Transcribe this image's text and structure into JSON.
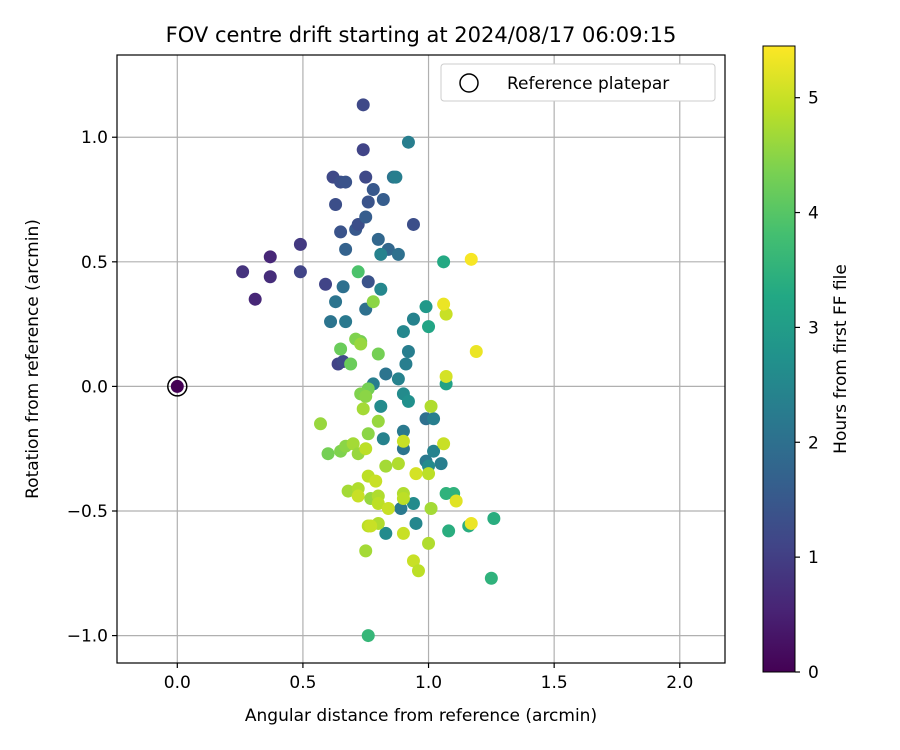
{
  "chart_data": {
    "type": "scatter",
    "title": "FOV centre drift starting at 2024/08/17 06:09:15",
    "xlabel": "Angular distance from reference (arcmin)",
    "ylabel": "Rotation from reference (arcmin)",
    "xlim": [
      -0.24,
      2.18
    ],
    "ylim": [
      -1.11,
      1.33
    ],
    "x_ticks": [
      0.0,
      0.5,
      1.0,
      1.5,
      2.0
    ],
    "x_tick_labels": [
      "0.0",
      "0.5",
      "1.0",
      "1.5",
      "2.0"
    ],
    "y_ticks": [
      -1.0,
      -0.5,
      0.0,
      0.5,
      1.0
    ],
    "y_tick_labels": [
      "−1.0",
      "−0.5",
      "0.0",
      "0.5",
      "1.0"
    ],
    "grid": true,
    "legend": {
      "placement": "top-right",
      "entries": [
        "Reference platepar"
      ]
    },
    "colorbar": {
      "label": "Hours from first FF file",
      "range": [
        0,
        5.45
      ],
      "ticks": [
        0,
        1,
        2,
        3,
        4,
        5
      ],
      "tick_labels": [
        "0",
        "1",
        "2",
        "3",
        "4",
        "5"
      ],
      "colormap": "viridis"
    },
    "reference_point": {
      "x": 0.0,
      "y": 0.0,
      "hours": 0.0
    },
    "series": [
      {
        "points": [
          [
            0.31,
            0.35,
            0.6
          ],
          [
            0.26,
            0.46,
            0.8
          ],
          [
            0.37,
            0.44,
            0.7
          ],
          [
            0.37,
            0.52,
            0.6
          ],
          [
            0.49,
            0.57,
            0.9
          ],
          [
            0.49,
            0.46,
            1.1
          ],
          [
            0.59,
            0.41,
            1.1
          ],
          [
            0.64,
            0.09,
            1.1
          ],
          [
            0.66,
            0.1,
            1.2
          ],
          [
            0.74,
            1.13,
            1.2
          ],
          [
            0.74,
            0.95,
            1.1
          ],
          [
            0.62,
            0.84,
            1.2
          ],
          [
            0.65,
            0.82,
            1.3
          ],
          [
            0.67,
            0.82,
            1.4
          ],
          [
            0.75,
            0.84,
            1.2
          ],
          [
            0.63,
            0.73,
            1.3
          ],
          [
            0.76,
            0.74,
            1.4
          ],
          [
            0.78,
            0.79,
            1.5
          ],
          [
            0.82,
            0.75,
            1.6
          ],
          [
            0.94,
            0.65,
            1.3
          ],
          [
            0.65,
            0.62,
            1.4
          ],
          [
            0.71,
            0.63,
            1.5
          ],
          [
            0.72,
            0.65,
            1.3
          ],
          [
            0.76,
            0.42,
            1.4
          ],
          [
            0.67,
            0.55,
            1.7
          ],
          [
            0.75,
            0.68,
            1.6
          ],
          [
            0.8,
            0.59,
            1.8
          ],
          [
            0.84,
            0.55,
            1.8
          ],
          [
            0.86,
            0.84,
            2.1
          ],
          [
            0.87,
            0.84,
            2.3
          ],
          [
            0.92,
            0.98,
            2.3
          ],
          [
            0.88,
            0.53,
            2.0
          ],
          [
            0.81,
            0.53,
            2.4
          ],
          [
            0.66,
            0.4,
            2.0
          ],
          [
            0.63,
            0.34,
            2.1
          ],
          [
            0.61,
            0.26,
            2.1
          ],
          [
            0.67,
            0.26,
            2.2
          ],
          [
            0.75,
            0.31,
            2.0
          ],
          [
            0.81,
            0.39,
            2.5
          ],
          [
            0.94,
            0.27,
            2.4
          ],
          [
            0.9,
            0.22,
            2.5
          ],
          [
            0.92,
            0.14,
            2.3
          ],
          [
            0.91,
            0.09,
            2.3
          ],
          [
            0.83,
            0.05,
            2.1
          ],
          [
            0.78,
            0.01,
            2.3
          ],
          [
            0.88,
            0.03,
            2.4
          ],
          [
            0.9,
            -0.03,
            2.6
          ],
          [
            0.92,
            -0.06,
            2.7
          ],
          [
            0.81,
            -0.08,
            2.6
          ],
          [
            0.99,
            -0.13,
            2.0
          ],
          [
            1.02,
            -0.13,
            2.3
          ],
          [
            0.82,
            -0.21,
            2.4
          ],
          [
            0.9,
            -0.18,
            2.2
          ],
          [
            0.9,
            -0.25,
            2.1
          ],
          [
            0.99,
            -0.3,
            2.2
          ],
          [
            1.02,
            -0.26,
            2.4
          ],
          [
            1.05,
            -0.31,
            2.3
          ],
          [
            1.0,
            -0.32,
            2.6
          ],
          [
            0.89,
            -0.49,
            2.2
          ],
          [
            0.94,
            -0.47,
            2.6
          ],
          [
            0.95,
            -0.55,
            2.5
          ],
          [
            0.83,
            -0.59,
            2.6
          ],
          [
            1.07,
            0.01,
            3.1
          ],
          [
            0.99,
            0.32,
            2.9
          ],
          [
            1.0,
            0.24,
            3.2
          ],
          [
            1.06,
            0.5,
            3.3
          ],
          [
            1.1,
            -0.43,
            3.5
          ],
          [
            1.07,
            -0.43,
            3.5
          ],
          [
            1.08,
            -0.58,
            3.4
          ],
          [
            1.16,
            -0.56,
            3.4
          ],
          [
            1.26,
            -0.53,
            3.4
          ],
          [
            1.25,
            -0.77,
            3.5
          ],
          [
            0.76,
            -1.0,
            3.6
          ],
          [
            0.72,
            0.46,
            3.9
          ],
          [
            0.65,
            0.15,
            4.2
          ],
          [
            0.69,
            0.09,
            4.2
          ],
          [
            0.73,
            0.18,
            4.3
          ],
          [
            0.71,
            0.19,
            4.4
          ],
          [
            0.73,
            0.17,
            4.6
          ],
          [
            0.8,
            0.13,
            4.3
          ],
          [
            0.78,
            0.34,
            4.5
          ],
          [
            0.76,
            -0.01,
            4.3
          ],
          [
            0.73,
            -0.03,
            4.4
          ],
          [
            0.75,
            -0.04,
            4.5
          ],
          [
            0.74,
            -0.09,
            4.7
          ],
          [
            0.76,
            -0.19,
            4.5
          ],
          [
            0.8,
            -0.14,
            4.6
          ],
          [
            0.57,
            -0.15,
            4.6
          ],
          [
            0.6,
            -0.27,
            4.3
          ],
          [
            0.65,
            -0.26,
            4.4
          ],
          [
            0.67,
            -0.24,
            4.5
          ],
          [
            0.7,
            -0.23,
            4.7
          ],
          [
            0.72,
            -0.27,
            4.6
          ],
          [
            0.75,
            -0.25,
            4.9
          ],
          [
            0.83,
            -0.32,
            4.7
          ],
          [
            0.88,
            -0.31,
            4.8
          ],
          [
            0.9,
            -0.22,
            5.0
          ],
          [
            0.95,
            -0.35,
            5.1
          ],
          [
            1.0,
            -0.35,
            4.9
          ],
          [
            1.06,
            -0.23,
            5.0
          ],
          [
            1.01,
            -0.08,
            4.8
          ],
          [
            1.07,
            0.04,
            5.1
          ],
          [
            1.07,
            0.29,
            5.0
          ],
          [
            1.06,
            0.33,
            5.3
          ],
          [
            1.19,
            0.14,
            5.3
          ],
          [
            1.17,
            0.51,
            5.4
          ],
          [
            0.68,
            -0.42,
            4.7
          ],
          [
            0.72,
            -0.41,
            4.8
          ],
          [
            0.76,
            -0.36,
            4.9
          ],
          [
            0.79,
            -0.38,
            5.0
          ],
          [
            0.72,
            -0.44,
            5.0
          ],
          [
            0.77,
            -0.45,
            4.6
          ],
          [
            0.8,
            -0.44,
            4.8
          ],
          [
            0.8,
            -0.47,
            4.9
          ],
          [
            0.84,
            -0.49,
            5.0
          ],
          [
            0.8,
            -0.55,
            4.8
          ],
          [
            0.76,
            -0.56,
            4.9
          ],
          [
            0.77,
            -0.56,
            5.0
          ],
          [
            0.75,
            -0.66,
            4.7
          ],
          [
            0.9,
            -0.43,
            4.8
          ],
          [
            0.9,
            -0.45,
            4.9
          ],
          [
            1.01,
            -0.49,
            4.7
          ],
          [
            1.0,
            -0.63,
            4.8
          ],
          [
            0.9,
            -0.59,
            5.0
          ],
          [
            0.94,
            -0.7,
            5.0
          ],
          [
            0.96,
            -0.74,
            4.9
          ],
          [
            1.11,
            -0.46,
            5.2
          ],
          [
            1.17,
            -0.55,
            5.3
          ]
        ]
      }
    ]
  }
}
